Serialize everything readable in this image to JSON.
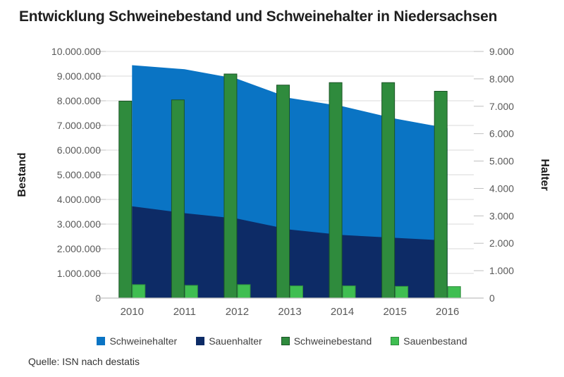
{
  "source": "Quelle: ISN nach destatis",
  "chart_data": {
    "type": "combo",
    "title": "Entwicklung Schweinebestand und Schweinehalter in Niedersachsen",
    "categories": [
      "2010",
      "2011",
      "2012",
      "2013",
      "2014",
      "2015",
      "2016"
    ],
    "series": [
      {
        "name": "Schweinehalter",
        "type": "area",
        "axis": "right",
        "color": "#0a74c4",
        "values": [
          8500,
          8350,
          8000,
          7300,
          7000,
          6550,
          6200
        ]
      },
      {
        "name": "Sauenhalter",
        "type": "area",
        "axis": "right",
        "color": "#0d2b66",
        "values": [
          3350,
          3100,
          2900,
          2500,
          2300,
          2200,
          2100
        ]
      },
      {
        "name": "Schweinebestand",
        "type": "bar",
        "axis": "left",
        "color": "#2f8b3d",
        "border": "#1b5426",
        "values": [
          8000000,
          8050000,
          9100000,
          8650000,
          8750000,
          8750000,
          8400000
        ]
      },
      {
        "name": "Sauenbestand",
        "type": "bar",
        "axis": "left",
        "color": "#3fbe51",
        "border": "#2f8b3d",
        "values": [
          560000,
          530000,
          560000,
          510000,
          510000,
          490000,
          480000
        ]
      }
    ],
    "left_axis": {
      "title": "Bestand",
      "min": 0,
      "max": 10000000,
      "step": 1000000,
      "tick_labels": [
        "0",
        "1.000.000",
        "2.000.000",
        "3.000.000",
        "4.000.000",
        "5.000.000",
        "6.000.000",
        "7.000.000",
        "8.000.000",
        "9.000.000",
        "10.000.000"
      ]
    },
    "right_axis": {
      "title": "Halter",
      "min": 0,
      "max": 9000,
      "step": 1000,
      "tick_labels": [
        "0",
        "1.000",
        "2.000",
        "3.000",
        "4.000",
        "5.000",
        "6.000",
        "7.000",
        "8.000",
        "9.000"
      ]
    },
    "legend_position": "bottom",
    "grid": true,
    "style": {
      "grid_color": "#d9d9d9",
      "axis_line_color": "#bfbfbf",
      "tick_text_color": "#595959",
      "axis_title_color": "#1a1a1a"
    }
  }
}
